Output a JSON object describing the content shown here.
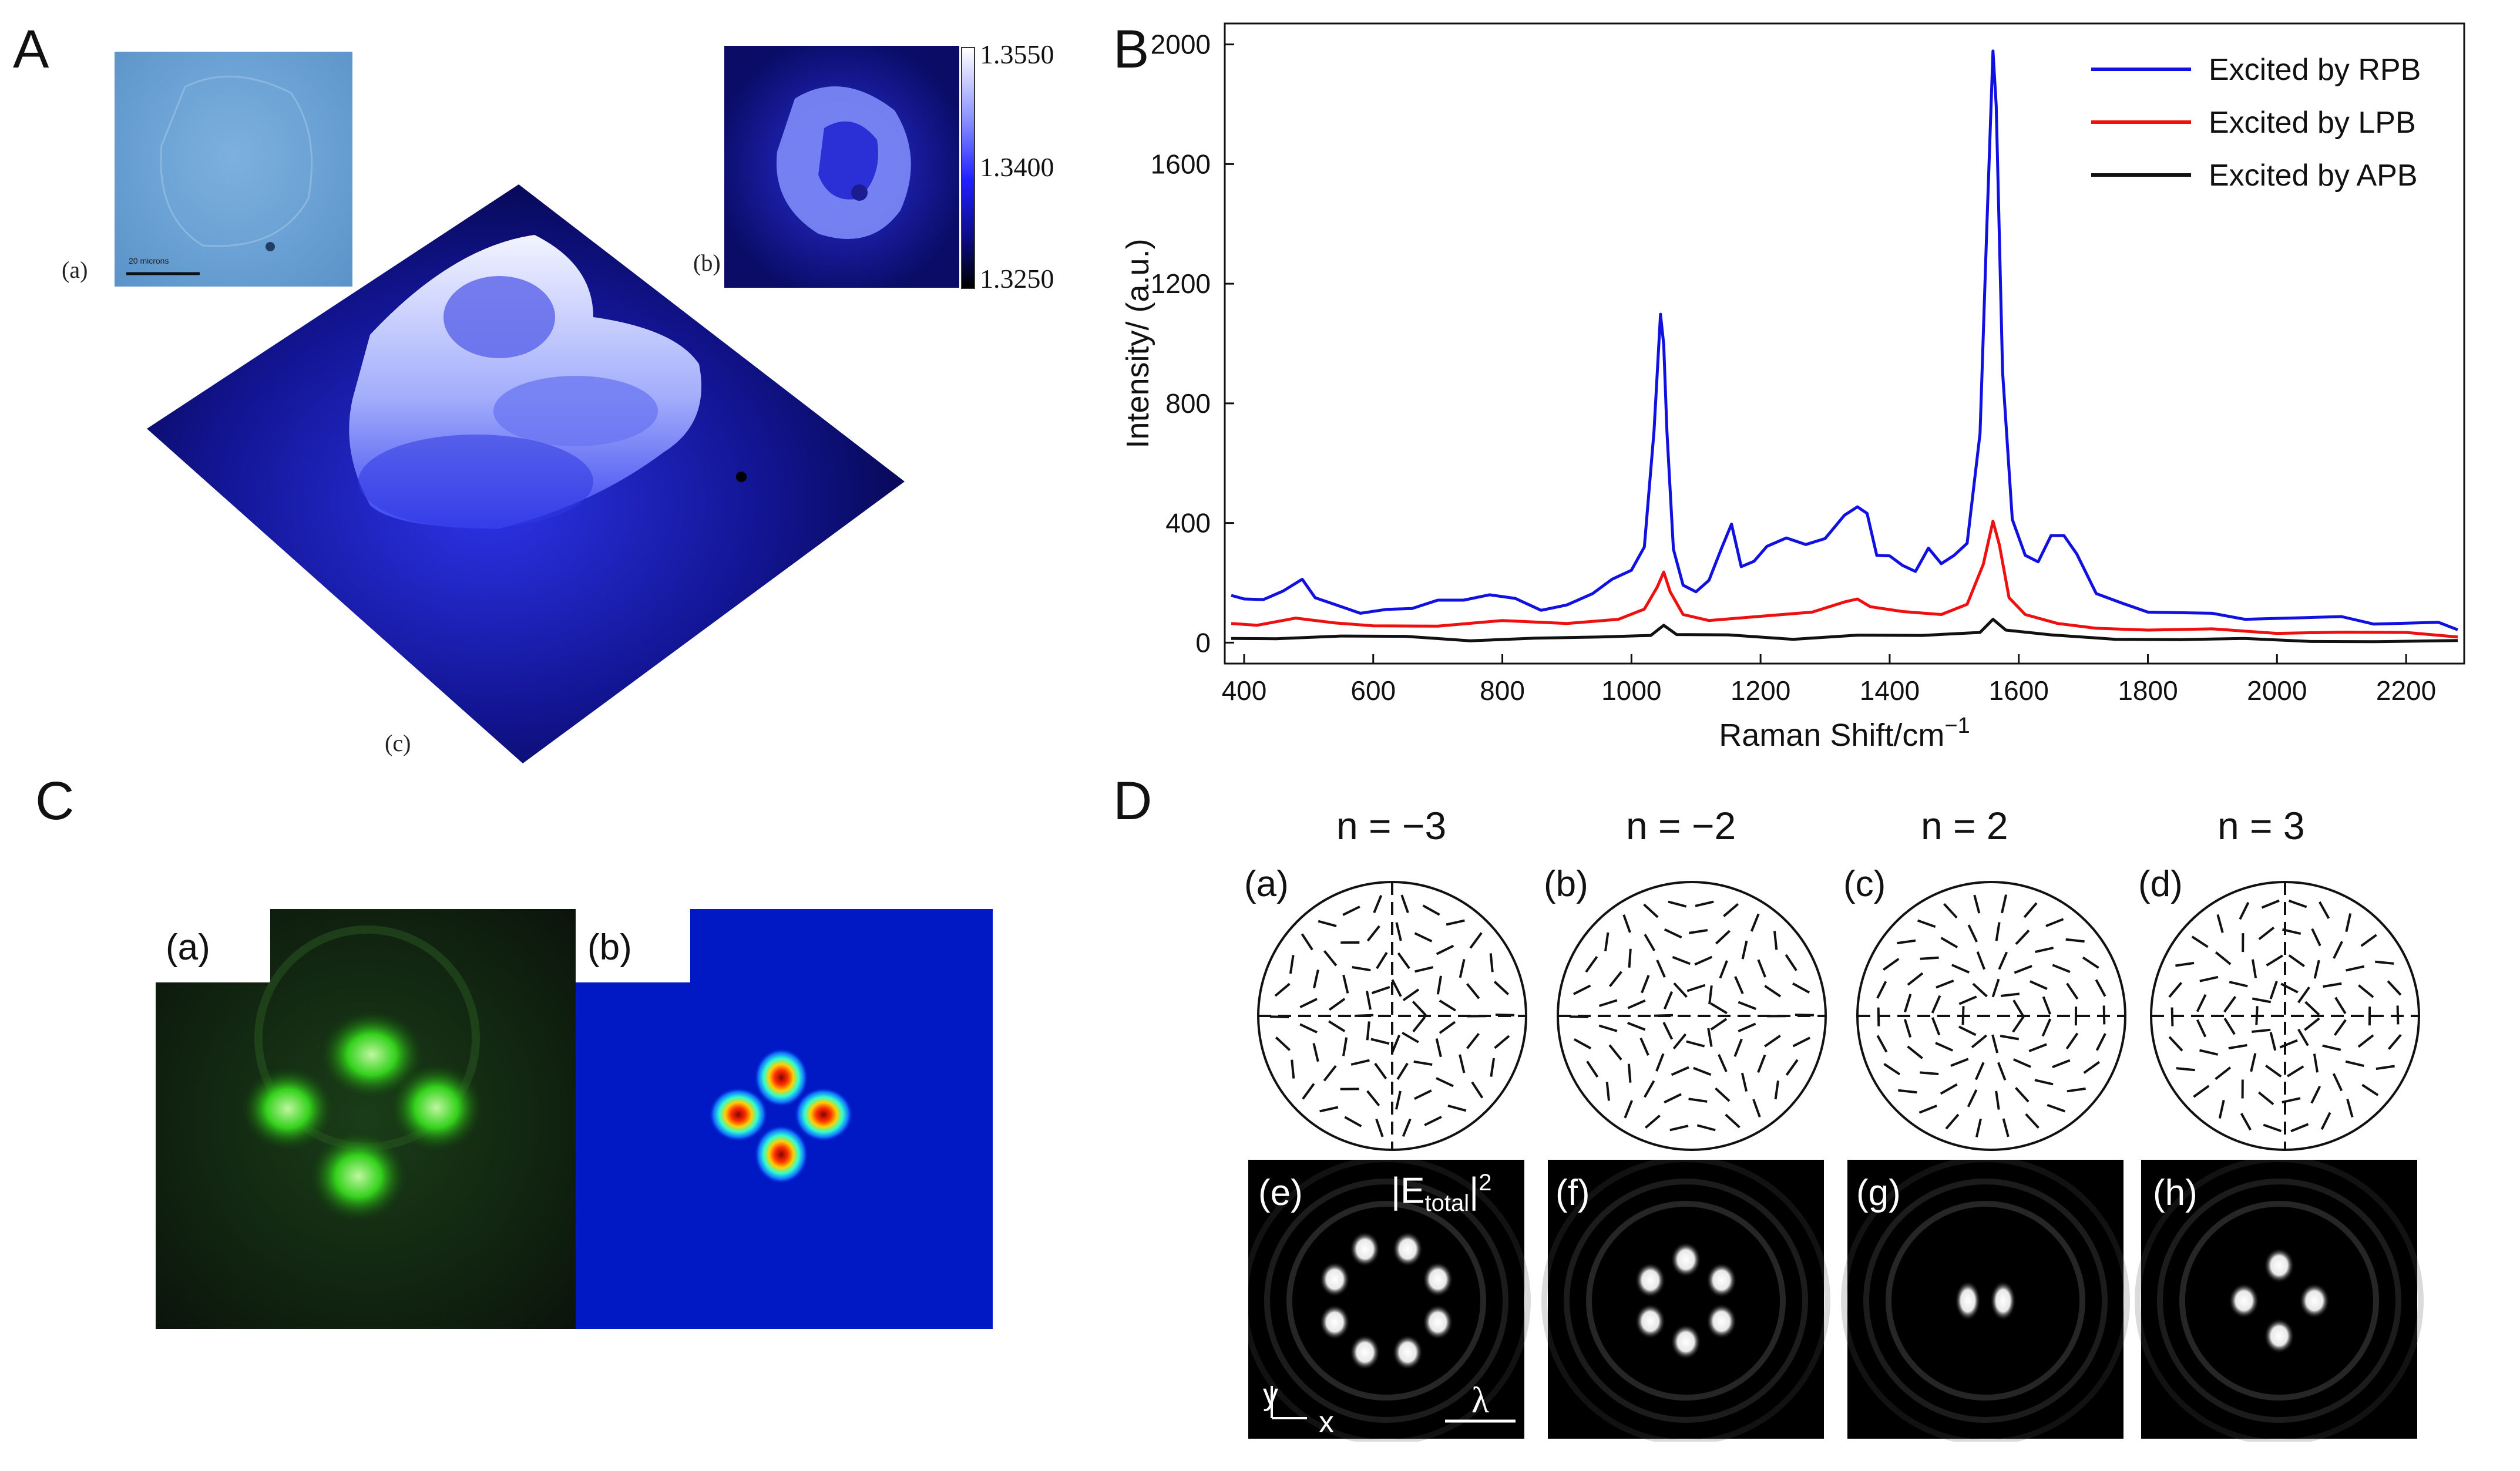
{
  "panels": {
    "A": {
      "letter": "A",
      "sub_a": "(a)",
      "sub_b": "(b)",
      "sub_c": "(c)",
      "scale_bar_text": "20 microns",
      "colorbar": {
        "max": "1.3550",
        "mid": "1.3400",
        "min": "1.3250"
      }
    },
    "B": {
      "letter": "B"
    },
    "C": {
      "letter": "C",
      "sub_a": "(a)",
      "sub_b": "(b)"
    },
    "D": {
      "letter": "D",
      "columns": [
        {
          "n_label": "n = −3",
          "circle_label": "(a)",
          "image_label": "(e)"
        },
        {
          "n_label": "n = −2",
          "circle_label": "(b)",
          "image_label": "(f)"
        },
        {
          "n_label": "n = 2",
          "circle_label": "(c)",
          "image_label": "(g)"
        },
        {
          "n_label": "n = 3",
          "circle_label": "(d)",
          "image_label": "(h)"
        }
      ],
      "field_label_main": "|E",
      "field_label_sub": "total",
      "field_label_end": "|",
      "field_label_sup": "2",
      "axis_y": "y",
      "axis_x": "x",
      "lambda": "λ"
    }
  },
  "chart_data": {
    "type": "line",
    "title": "",
    "xlabel": "Raman Shift/cm",
    "xlabel_sup": "−1",
    "ylabel": "Intensity/ (a.u.)",
    "xlim": [
      370,
      2290
    ],
    "ylim": [
      -70,
      2070
    ],
    "xticks": [
      400,
      600,
      800,
      1000,
      1200,
      1400,
      1600,
      1800,
      2000,
      2200
    ],
    "yticks": [
      0,
      400,
      800,
      1200,
      1600,
      2000
    ],
    "legend_position": "top-right",
    "series": [
      {
        "name": "Excited by RPB",
        "color": "#1010e0",
        "x": [
          380,
          400,
          430,
          460,
          490,
          510,
          540,
          580,
          620,
          660,
          700,
          740,
          780,
          820,
          860,
          900,
          940,
          970,
          1000,
          1020,
          1035,
          1045,
          1050,
          1055,
          1065,
          1080,
          1100,
          1120,
          1140,
          1155,
          1170,
          1190,
          1210,
          1240,
          1270,
          1300,
          1330,
          1350,
          1365,
          1380,
          1400,
          1420,
          1440,
          1460,
          1480,
          1500,
          1520,
          1540,
          1550,
          1560,
          1565,
          1575,
          1590,
          1610,
          1630,
          1650,
          1670,
          1690,
          1720,
          1760,
          1800,
          1850,
          1900,
          1950,
          2000,
          2050,
          2100,
          2150,
          2200,
          2250,
          2280
        ],
        "y": [
          170,
          150,
          140,
          160,
          220,
          150,
          120,
          110,
          115,
          110,
          130,
          150,
          160,
          140,
          120,
          130,
          160,
          200,
          250,
          320,
          700,
          1110,
          1000,
          700,
          300,
          200,
          170,
          200,
          330,
          400,
          250,
          260,
          330,
          350,
          320,
          360,
          430,
          450,
          420,
          300,
          290,
          250,
          250,
          320,
          260,
          280,
          340,
          700,
          1350,
          1990,
          1800,
          900,
          400,
          300,
          270,
          350,
          370,
          300,
          160,
          120,
          110,
          100,
          90,
          90,
          85,
          80,
          75,
          70,
          65,
          60,
          55
        ]
      },
      {
        "name": "Excited by LPB",
        "color": "#ee1010",
        "x": [
          380,
          420,
          480,
          540,
          600,
          700,
          800,
          900,
          980,
          1020,
          1040,
          1050,
          1060,
          1080,
          1120,
          1200,
          1280,
          1330,
          1350,
          1370,
          1420,
          1480,
          1520,
          1545,
          1560,
          1570,
          1585,
          1610,
          1660,
          1720,
          1800,
          1900,
          2000,
          2100,
          2200,
          2280
        ],
        "y": [
          70,
          60,
          80,
          60,
          60,
          55,
          70,
          70,
          80,
          110,
          180,
          240,
          170,
          90,
          80,
          90,
          100,
          130,
          150,
          120,
          100,
          100,
          130,
          260,
          400,
          330,
          150,
          90,
          70,
          50,
          40,
          40,
          35,
          35,
          30,
          25
        ]
      },
      {
        "name": "Excited by APB",
        "color": "#111111",
        "x": [
          380,
          450,
          550,
          650,
          750,
          850,
          950,
          1030,
          1050,
          1070,
          1150,
          1250,
          1350,
          1450,
          1540,
          1560,
          1580,
          1650,
          1750,
          1850,
          1950,
          2050,
          2150,
          2280
        ],
        "y": [
          20,
          15,
          20,
          15,
          10,
          15,
          15,
          30,
          60,
          25,
          20,
          15,
          25,
          20,
          40,
          80,
          40,
          20,
          15,
          10,
          10,
          10,
          5,
          5
        ]
      }
    ]
  }
}
